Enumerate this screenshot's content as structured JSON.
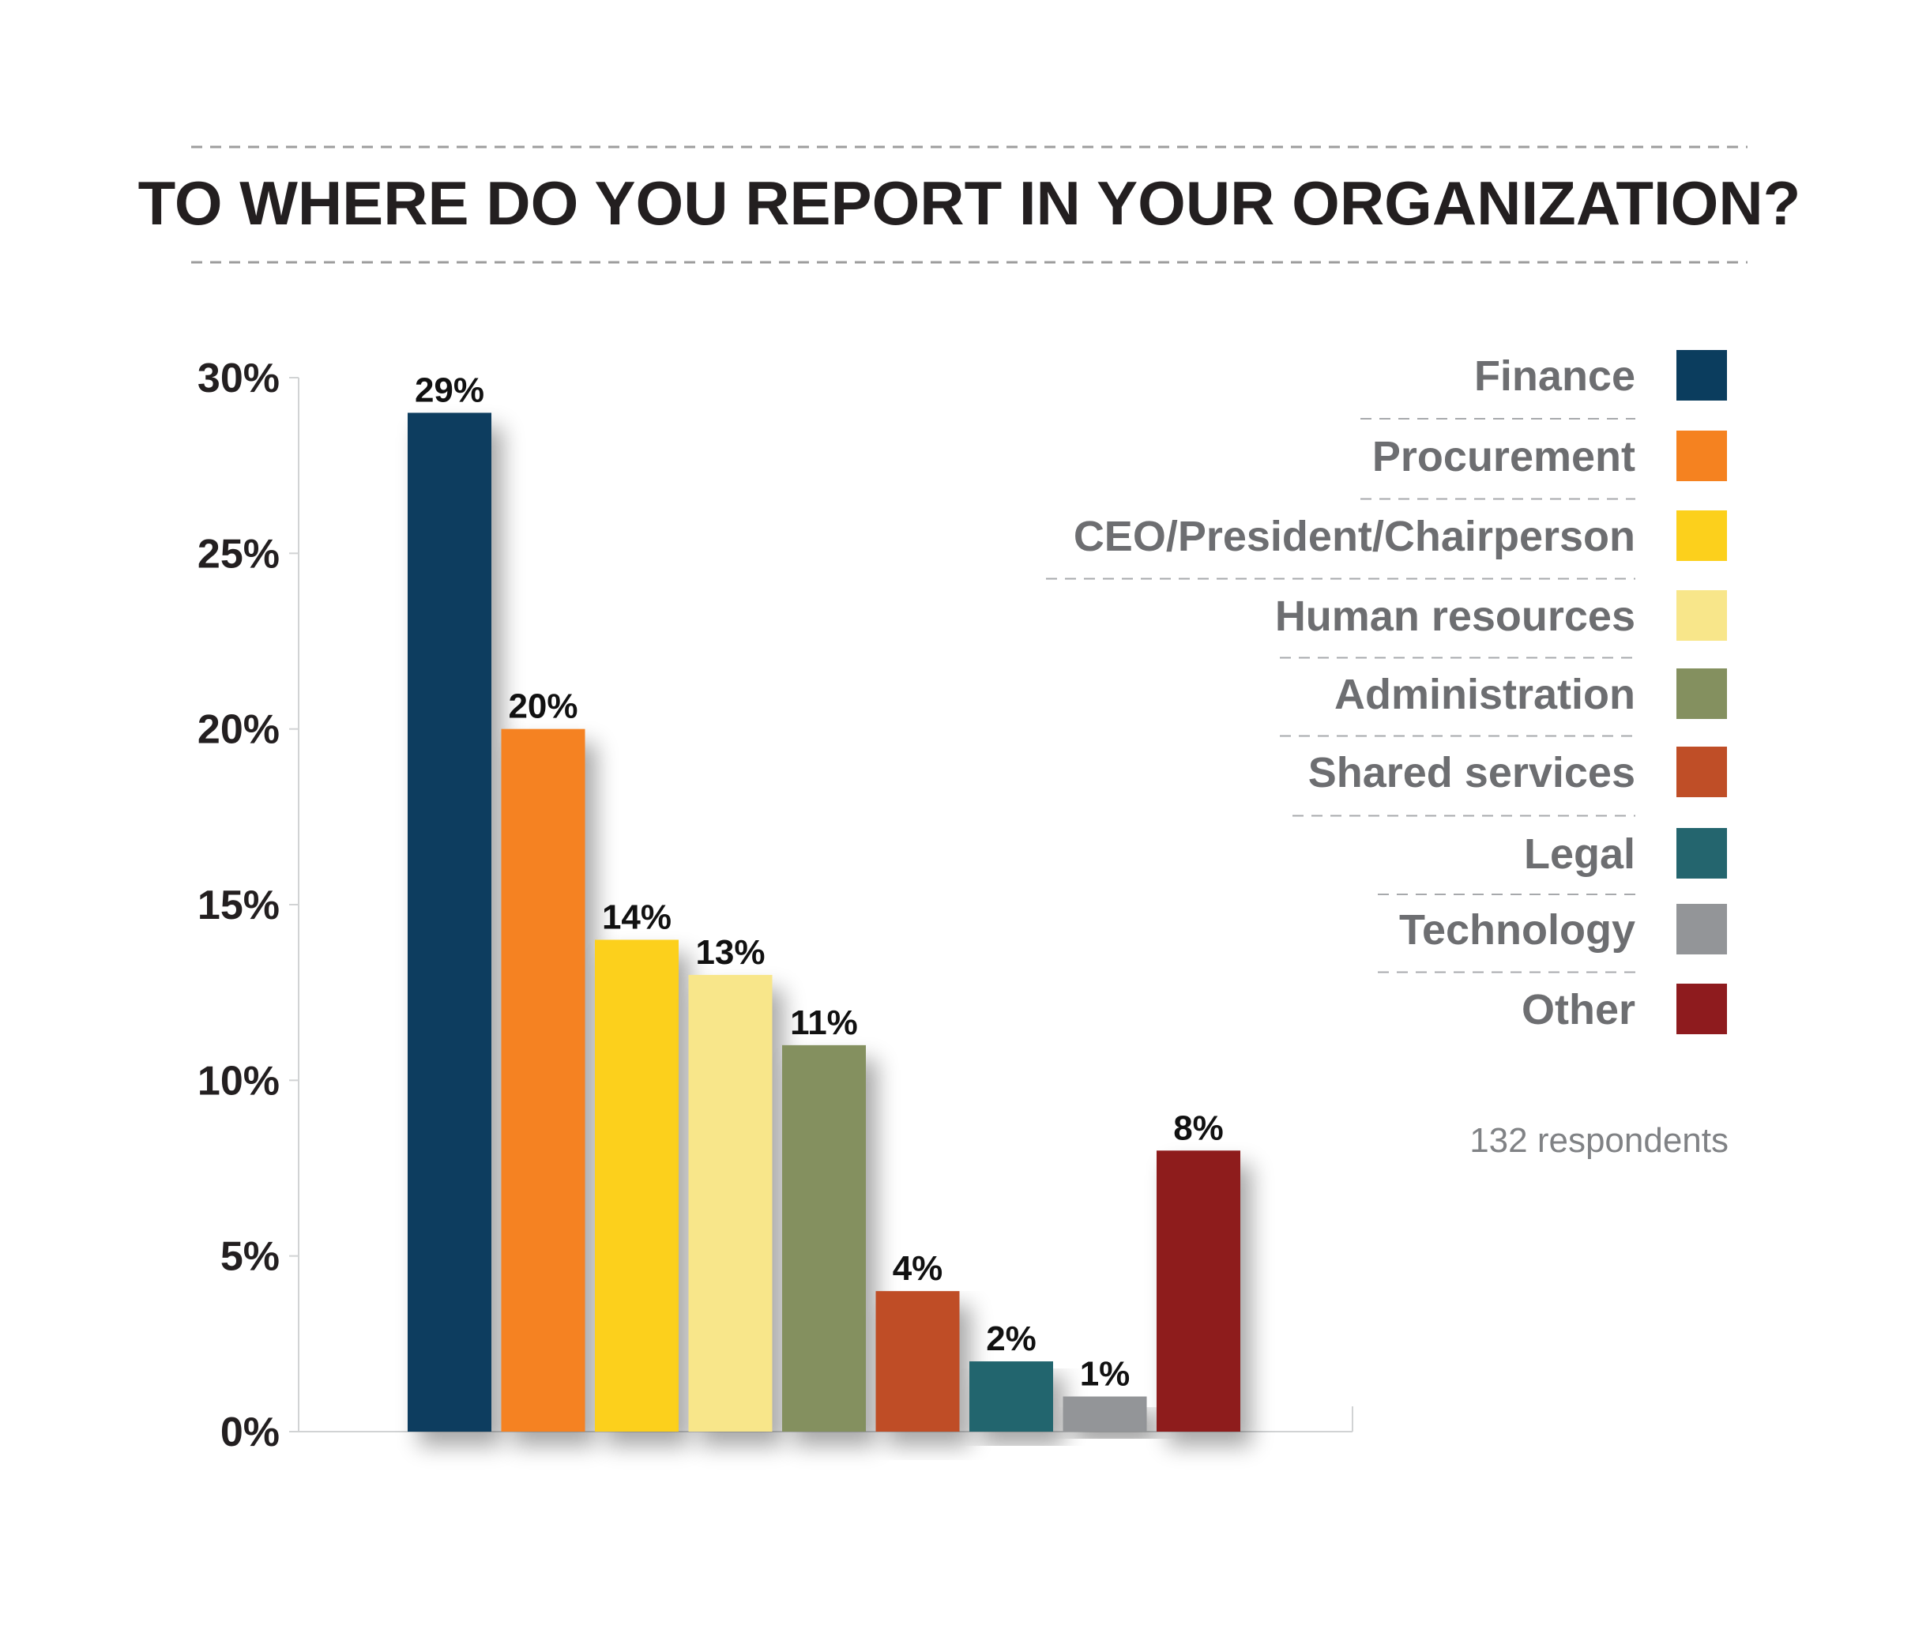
{
  "chart_data": {
    "type": "bar",
    "title": "TO WHERE DO YOU REPORT IN YOUR ORGANIZATION?",
    "categories": [
      "Finance",
      "Procurement",
      "CEO/President/Chairperson",
      "Human resources",
      "Administration",
      "Shared services",
      "Legal",
      "Technology",
      "Other"
    ],
    "values": [
      29,
      20,
      14,
      13,
      11,
      4,
      2,
      1,
      8
    ],
    "value_labels": [
      "29%",
      "20%",
      "14%",
      "13%",
      "11%",
      "4%",
      "2%",
      "1%",
      "8%"
    ],
    "colors": [
      "#0b3d5e",
      "#f58220",
      "#fcd01c",
      "#f8e68a",
      "#84905f",
      "#bf4e27",
      "#24656e",
      "#939598",
      "#8e1b1e"
    ],
    "ylim": [
      0,
      30
    ],
    "yticks": [
      0,
      5,
      10,
      15,
      20,
      25,
      30
    ],
    "ytick_labels": [
      "0%",
      "5%",
      "10%",
      "15%",
      "20%",
      "25%",
      "30%"
    ],
    "legend_position": "right",
    "grid": false,
    "note": "132 respondents"
  }
}
